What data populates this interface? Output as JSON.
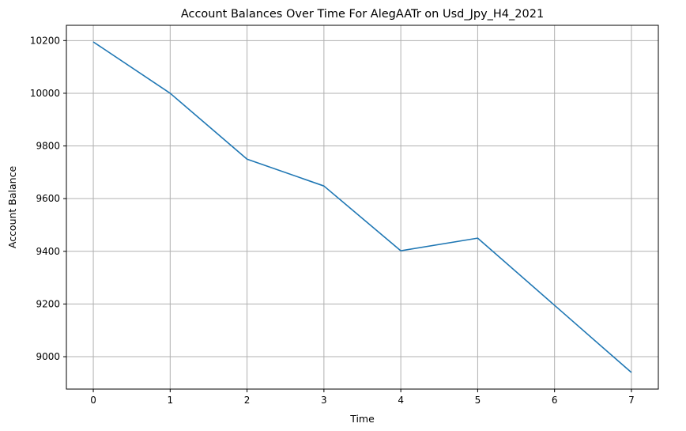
{
  "chart_data": {
    "type": "line",
    "title": "Account Balances Over Time For AlegAATr on Usd_Jpy_H4_2021",
    "xlabel": "Time",
    "ylabel": "Account Balance",
    "x": [
      0,
      1,
      2,
      3,
      4,
      5,
      6,
      7
    ],
    "series": [
      {
        "values": [
          10195,
          10000,
          9750,
          9648,
          9402,
          9450,
          9195,
          8940
        ],
        "color": "#1f77b4"
      }
    ],
    "xticks": [
      0,
      1,
      2,
      3,
      4,
      5,
      6,
      7
    ],
    "yticks": [
      9000,
      9200,
      9400,
      9600,
      9800,
      10000,
      10200
    ],
    "xlim": [
      -0.35,
      7.35
    ],
    "ylim": [
      8877,
      10258
    ],
    "grid": true,
    "legend": "none"
  }
}
